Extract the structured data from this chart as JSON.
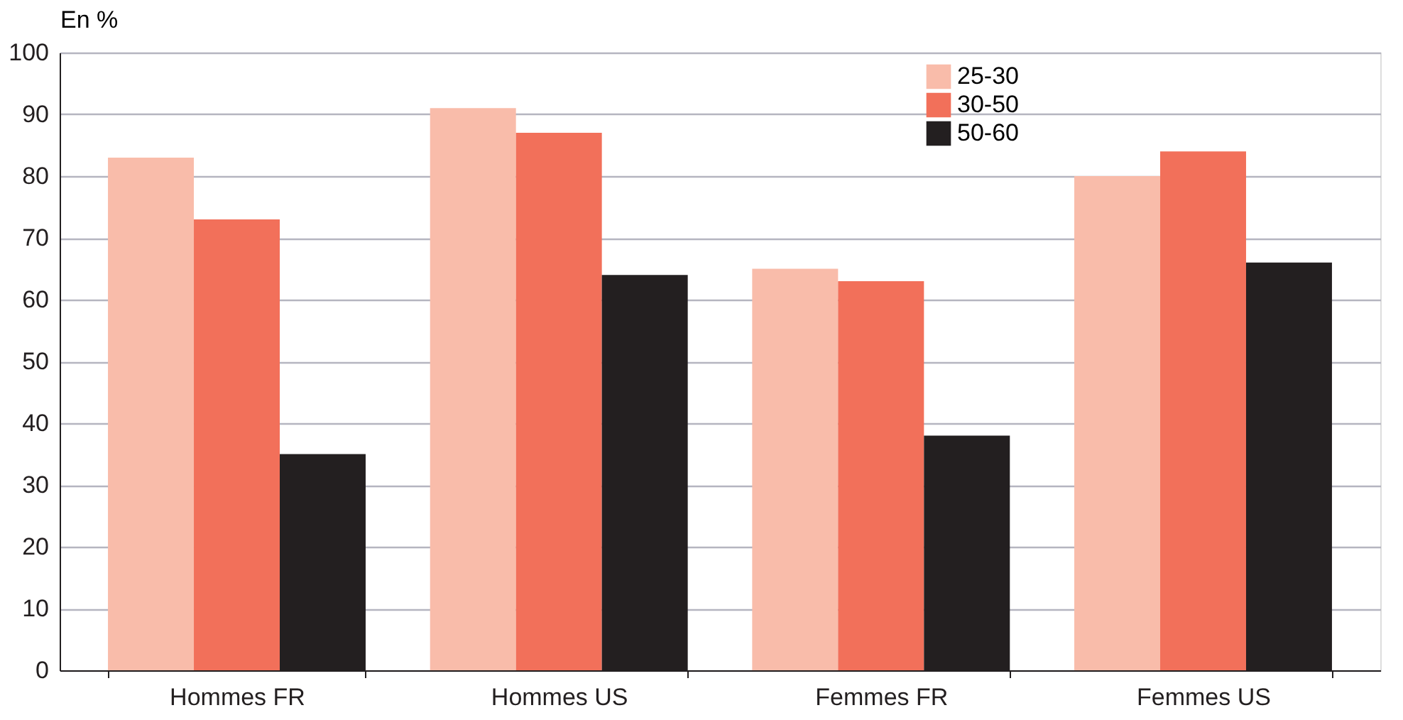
{
  "chart_data": {
    "type": "bar",
    "ylabel": "En %",
    "categories": [
      "Hommes FR",
      "Hommes US",
      "Femmes FR",
      "Femmes US"
    ],
    "series": [
      {
        "name": "25-30",
        "color": "#f9bcaa",
        "values": [
          83,
          91,
          65,
          80
        ]
      },
      {
        "name": "30-50",
        "color": "#f2705a",
        "values": [
          73,
          87,
          63,
          84
        ]
      },
      {
        "name": "50-60",
        "color": "#231f20",
        "values": [
          35,
          64,
          38,
          66
        ]
      }
    ],
    "ylim": [
      0,
      100
    ],
    "yticks": [
      0,
      10,
      20,
      30,
      40,
      50,
      60,
      70,
      80,
      90,
      100
    ],
    "grid": "y",
    "legend": "top right"
  }
}
